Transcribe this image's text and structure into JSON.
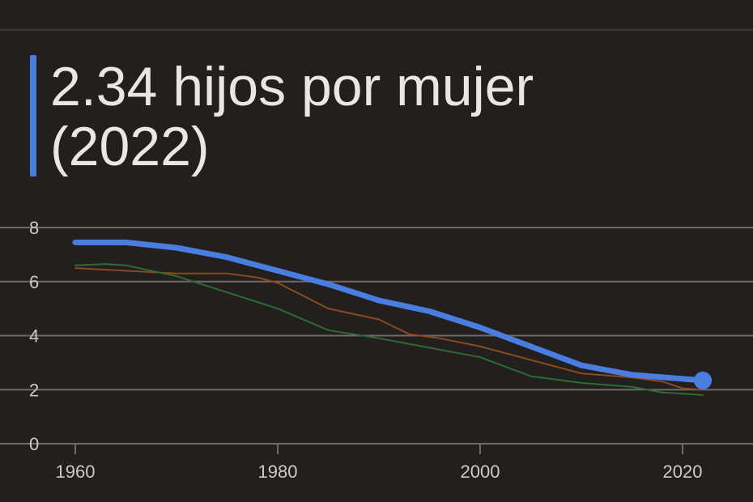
{
  "headline": {
    "value_text": "2.34 hijos por mujer",
    "year_text": "(2022)"
  },
  "colors": {
    "background": "#231f1f",
    "accent": "#4a7de0",
    "gridline": "#6f6a68",
    "text": "#ece6e2"
  },
  "chart_data": {
    "type": "line",
    "title": "",
    "xlabel": "",
    "ylabel": "",
    "xlim": [
      1957,
      2030
    ],
    "ylim": [
      0,
      8
    ],
    "x_ticks": [
      "1960",
      "1980",
      "2000",
      "2020"
    ],
    "y_ticks": [
      "0",
      "2",
      "4",
      "6",
      "8"
    ],
    "grid": true,
    "legend": "none",
    "series": [
      {
        "color": "#4a7de0",
        "emphasis": "primary",
        "end_marker": true,
        "x": [
          1960,
          1965,
          1970,
          1975,
          1980,
          1985,
          1990,
          1995,
          2000,
          2005,
          2010,
          2015,
          2020,
          2022
        ],
        "y": [
          7.45,
          7.45,
          7.25,
          6.9,
          6.4,
          5.9,
          5.3,
          4.9,
          4.3,
          3.6,
          2.9,
          2.55,
          2.4,
          2.34
        ]
      },
      {
        "color": "#8a4a1e",
        "emphasis": "secondary",
        "x": [
          1960,
          1965,
          1970,
          1975,
          1978,
          1980,
          1985,
          1990,
          1993,
          1996,
          2000,
          2005,
          2010,
          2015,
          2018,
          2020,
          2022
        ],
        "y": [
          6.5,
          6.4,
          6.3,
          6.3,
          6.15,
          5.95,
          5.0,
          4.6,
          4.05,
          3.9,
          3.6,
          3.1,
          2.6,
          2.45,
          2.3,
          2.05,
          2.0
        ]
      },
      {
        "color": "#2e6b34",
        "emphasis": "secondary",
        "x": [
          1960,
          1963,
          1965,
          1970,
          1975,
          1980,
          1985,
          1990,
          1995,
          2000,
          2005,
          2010,
          2015,
          2018,
          2022
        ],
        "y": [
          6.6,
          6.65,
          6.6,
          6.2,
          5.6,
          5.0,
          4.2,
          3.9,
          3.55,
          3.2,
          2.5,
          2.25,
          2.1,
          1.9,
          1.8
        ]
      }
    ]
  }
}
